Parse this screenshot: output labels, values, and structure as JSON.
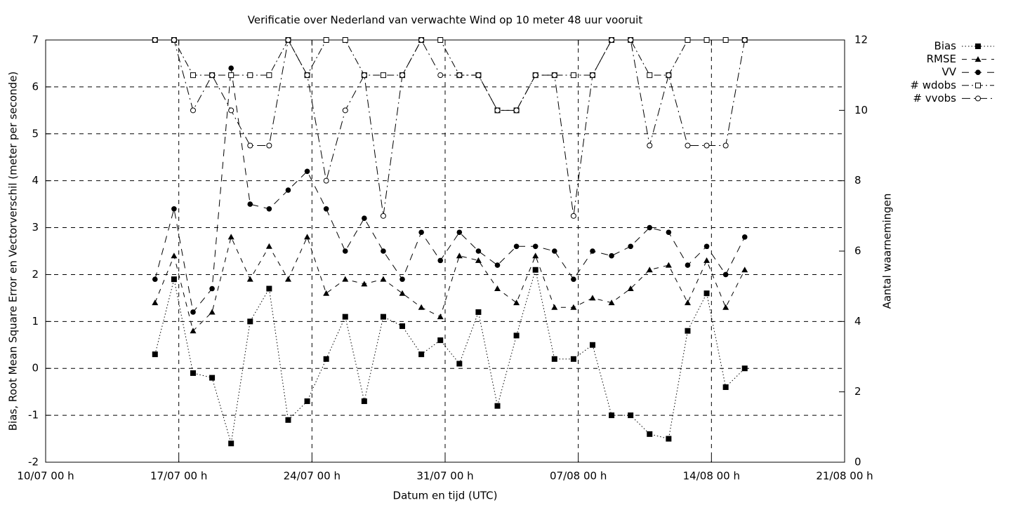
{
  "chart_data": {
    "type": "line",
    "title": "Verificatie over Nederland van verwachte Wind op 10 meter 48 uur vooruit",
    "x_label": "Datum en tijd (UTC)",
    "y_label": "Bias, Root Mean Square Error en Vectorverschil (meter per seconde)",
    "y2_label": "Aantal waarnemingen",
    "x": [
      "15/07 18 h",
      "16/07 18 h",
      "17/07 18 h",
      "18/07 18 h",
      "19/07 18 h",
      "20/07 18 h",
      "21/07 18 h",
      "22/07 18 h",
      "23/07 18 h",
      "24/07 18 h",
      "25/07 18 h",
      "26/07 18 h",
      "27/07 18 h",
      "28/07 18 h",
      "29/07 18 h",
      "30/07 18 h",
      "31/07 18 h",
      "01/08 18 h",
      "02/08 18 h",
      "03/08 18 h",
      "04/08 18 h",
      "05/08 18 h",
      "06/08 18 h",
      "07/08 18 h",
      "08/08 18 h",
      "09/08 18 h",
      "10/08 18 h",
      "11/08 18 h",
      "12/08 18 h",
      "13/08 18 h",
      "14/08 18 h",
      "15/08 18 h"
    ],
    "xlim": [
      "10/07 00 h",
      "21/08 00 h"
    ],
    "xticks": [
      "10/07 00 h",
      "17/07 00 h",
      "24/07 00 h",
      "31/07 00 h",
      "07/08 00 h",
      "14/08 00 h",
      "21/08 00 h"
    ],
    "ylim": [
      -2,
      7
    ],
    "yticks": [
      -2,
      -1,
      0,
      1,
      2,
      3,
      4,
      5,
      6,
      7
    ],
    "y2lim": [
      0,
      12
    ],
    "y2ticks": [
      0,
      2,
      4,
      6,
      8,
      10,
      12
    ],
    "grid": true,
    "legend": "outside-top-right",
    "series": [
      {
        "name": "Bias",
        "color": "#000000",
        "marker": "filled-square",
        "dash": "dotted",
        "values": [
          0.3,
          1.9,
          -0.1,
          -0.2,
          -1.6,
          1.0,
          1.7,
          -1.1,
          -0.7,
          0.2,
          1.1,
          -0.7,
          1.1,
          0.9,
          0.3,
          0.6,
          0.1,
          1.2,
          -0.8,
          0.7,
          2.1,
          0.2,
          0.2,
          0.5,
          -1.0,
          -1.0,
          -1.4,
          -1.5,
          0.8,
          1.6,
          -0.4,
          0.0
        ]
      },
      {
        "name": "RMSE",
        "color": "#000000",
        "marker": "filled-triangle",
        "dash": "dashed",
        "values": [
          1.4,
          2.4,
          0.8,
          1.2,
          2.8,
          1.9,
          2.6,
          1.9,
          2.8,
          1.6,
          1.9,
          1.8,
          1.9,
          1.6,
          1.3,
          1.1,
          2.4,
          2.3,
          1.7,
          1.4,
          2.4,
          1.3,
          1.3,
          1.5,
          1.4,
          1.7,
          2.1,
          2.2,
          1.4,
          2.3,
          1.3,
          2.1
        ]
      },
      {
        "name": "VV",
        "color": "#000000",
        "marker": "filled-circle",
        "dash": "long-dashed",
        "values": [
          1.9,
          3.4,
          1.2,
          1.7,
          6.4,
          3.5,
          3.4,
          3.8,
          4.2,
          3.4,
          2.5,
          3.2,
          2.5,
          1.9,
          2.9,
          2.3,
          2.9,
          2.5,
          2.2,
          2.6,
          2.6,
          2.5,
          1.9,
          2.5,
          2.4,
          2.6,
          3.0,
          2.9,
          2.2,
          2.6,
          2.0,
          2.8
        ]
      },
      {
        "name": "# wdobs",
        "color": "#000000",
        "marker": "open-square",
        "dash": "dash-dot",
        "axis": "y2",
        "values": [
          12,
          12,
          11,
          11,
          11,
          11,
          11,
          12,
          11,
          12,
          12,
          11,
          11,
          11,
          12,
          12,
          11,
          11,
          10,
          10,
          11,
          11,
          11,
          11,
          12,
          12,
          11,
          11,
          12,
          12,
          12,
          12
        ]
      },
      {
        "name": "# vvobs",
        "color": "#000000",
        "marker": "open-circle",
        "dash": "dash-dot-long",
        "axis": "y2",
        "values": [
          12,
          12,
          10,
          11,
          10,
          9,
          9,
          12,
          11,
          8,
          10,
          11,
          7,
          11,
          12,
          11,
          11,
          11,
          10,
          10,
          11,
          11,
          7,
          11,
          12,
          12,
          9,
          11,
          9,
          9,
          9,
          12
        ]
      }
    ]
  }
}
